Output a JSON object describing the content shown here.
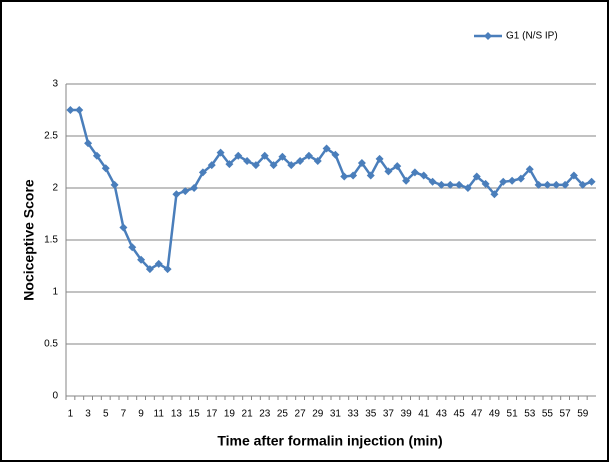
{
  "chart_data": {
    "type": "line",
    "xlabel": "Time after formalin injection (min)",
    "ylabel": "Nociceptive Score",
    "categories": [
      "1",
      null,
      "3",
      null,
      "5",
      null,
      "7",
      null,
      "9",
      null,
      "11",
      null,
      "13",
      null,
      "15",
      null,
      "17",
      null,
      "19",
      null,
      "21",
      null,
      "23",
      null,
      "25",
      null,
      "27",
      null,
      "29",
      null,
      "31",
      null,
      "33",
      null,
      "35",
      null,
      "37",
      null,
      "39",
      null,
      "41",
      null,
      "43",
      null,
      "45",
      null,
      "47",
      null,
      "49",
      null,
      "51",
      null,
      "53",
      null,
      "55",
      null,
      "57",
      null,
      "59",
      null
    ],
    "series": [
      {
        "name": "G1 (N/S IP)",
        "color": "#4a7ebb",
        "values": [
          2.75,
          2.75,
          2.43,
          2.31,
          2.19,
          2.03,
          1.62,
          1.43,
          1.31,
          1.22,
          1.27,
          1.22,
          1.94,
          1.97,
          2.0,
          2.15,
          2.22,
          2.34,
          2.23,
          2.31,
          2.26,
          2.22,
          2.31,
          2.22,
          2.3,
          2.22,
          2.26,
          2.31,
          2.26,
          2.38,
          2.32,
          2.11,
          2.12,
          2.24,
          2.12,
          2.28,
          2.16,
          2.21,
          2.07,
          2.15,
          2.12,
          2.06,
          2.03,
          2.03,
          2.03,
          2.0,
          2.11,
          2.04,
          1.94,
          2.06,
          2.07,
          2.09,
          2.18,
          2.03,
          2.03,
          2.03,
          2.03,
          2.12,
          2.03,
          2.06
        ]
      }
    ],
    "ylim": [
      0,
      3
    ],
    "yticks": [
      0,
      0.5,
      1,
      1.5,
      2,
      2.5,
      3
    ],
    "grid": true,
    "legend": "top-right"
  }
}
